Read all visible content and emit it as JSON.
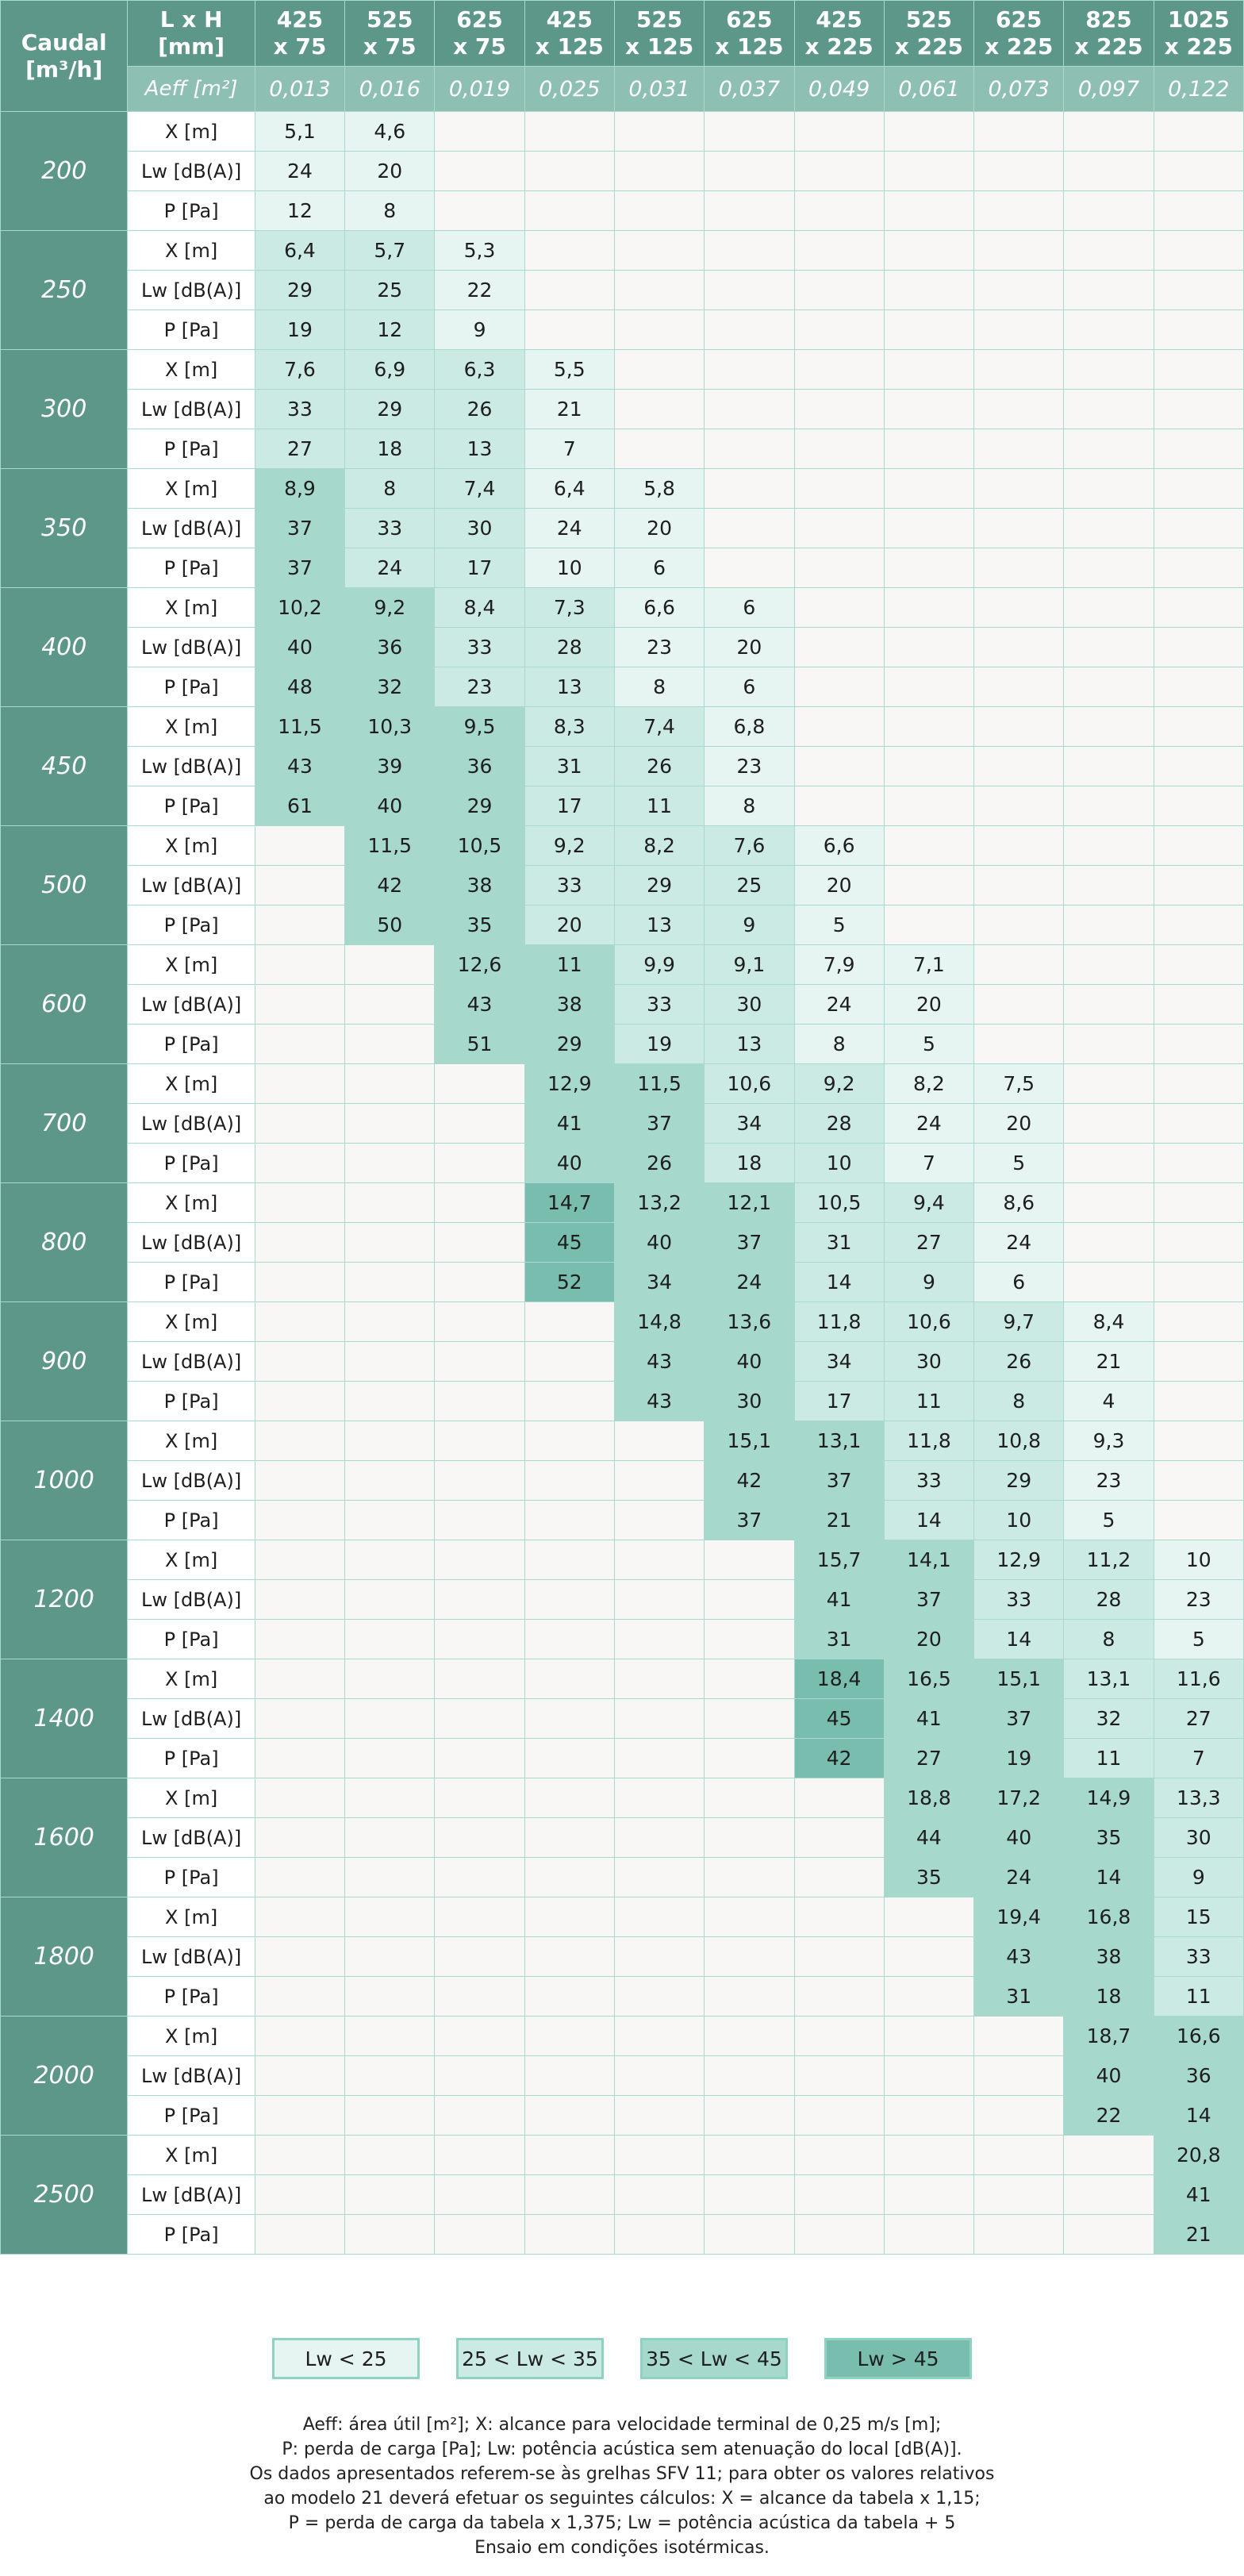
{
  "header": {
    "caudal_label": "Caudal",
    "caudal_unit": "[m³/h]",
    "lxh_label": "L x H",
    "lxh_unit": "[mm]",
    "aeff_label": "Aeff [m²]",
    "models": [
      {
        "w": "425",
        "h": "x 75",
        "aeff": "0,013"
      },
      {
        "w": "525",
        "h": "x 75",
        "aeff": "0,016"
      },
      {
        "w": "625",
        "h": "x 75",
        "aeff": "0,019"
      },
      {
        "w": "425",
        "h": "x 125",
        "aeff": "0,025"
      },
      {
        "w": "525",
        "h": "x 125",
        "aeff": "0,031"
      },
      {
        "w": "625",
        "h": "x 125",
        "aeff": "0,037"
      },
      {
        "w": "425",
        "h": "x 225",
        "aeff": "0,049"
      },
      {
        "w": "525",
        "h": "x 225",
        "aeff": "0,061"
      },
      {
        "w": "625",
        "h": "x 225",
        "aeff": "0,073"
      },
      {
        "w": "825",
        "h": "x 225",
        "aeff": "0,097"
      },
      {
        "w": "1025",
        "h": "x 225",
        "aeff": "0,122"
      }
    ]
  },
  "row_labels": [
    "X [m]",
    "Lw [dB(A)]",
    "P [Pa]"
  ],
  "colors": {
    "band1": "#e7f5f2",
    "band2": "#cbeae3",
    "band3": "#a6d8cc",
    "band4": "#78bdad",
    "header": "#5d978a",
    "aeff_row": "#8dbfb3"
  },
  "rows": [
    {
      "caudal": "200",
      "cells": [
        {
          "x": "5,1",
          "lw": "24",
          "p": "12"
        },
        {
          "x": "4,6",
          "lw": "20",
          "p": "8"
        },
        null,
        null,
        null,
        null,
        null,
        null,
        null,
        null,
        null
      ]
    },
    {
      "caudal": "250",
      "cells": [
        {
          "x": "6,4",
          "lw": "29",
          "p": "19"
        },
        {
          "x": "5,7",
          "lw": "25",
          "p": "12"
        },
        {
          "x": "5,3",
          "lw": "22",
          "p": "9"
        },
        null,
        null,
        null,
        null,
        null,
        null,
        null,
        null
      ]
    },
    {
      "caudal": "300",
      "cells": [
        {
          "x": "7,6",
          "lw": "33",
          "p": "27"
        },
        {
          "x": "6,9",
          "lw": "29",
          "p": "18"
        },
        {
          "x": "6,3",
          "lw": "26",
          "p": "13"
        },
        {
          "x": "5,5",
          "lw": "21",
          "p": "7"
        },
        null,
        null,
        null,
        null,
        null,
        null,
        null
      ]
    },
    {
      "caudal": "350",
      "cells": [
        {
          "x": "8,9",
          "lw": "37",
          "p": "37"
        },
        {
          "x": "8",
          "lw": "33",
          "p": "24"
        },
        {
          "x": "7,4",
          "lw": "30",
          "p": "17"
        },
        {
          "x": "6,4",
          "lw": "24",
          "p": "10"
        },
        {
          "x": "5,8",
          "lw": "20",
          "p": "6"
        },
        null,
        null,
        null,
        null,
        null,
        null
      ]
    },
    {
      "caudal": "400",
      "cells": [
        {
          "x": "10,2",
          "lw": "40",
          "p": "48"
        },
        {
          "x": "9,2",
          "lw": "36",
          "p": "32"
        },
        {
          "x": "8,4",
          "lw": "33",
          "p": "23"
        },
        {
          "x": "7,3",
          "lw": "28",
          "p": "13"
        },
        {
          "x": "6,6",
          "lw": "23",
          "p": "8"
        },
        {
          "x": "6",
          "lw": "20",
          "p": "6"
        },
        null,
        null,
        null,
        null,
        null
      ]
    },
    {
      "caudal": "450",
      "cells": [
        {
          "x": "11,5",
          "lw": "43",
          "p": "61"
        },
        {
          "x": "10,3",
          "lw": "39",
          "p": "40"
        },
        {
          "x": "9,5",
          "lw": "36",
          "p": "29"
        },
        {
          "x": "8,3",
          "lw": "31",
          "p": "17"
        },
        {
          "x": "7,4",
          "lw": "26",
          "p": "11"
        },
        {
          "x": "6,8",
          "lw": "23",
          "p": "8"
        },
        null,
        null,
        null,
        null,
        null
      ]
    },
    {
      "caudal": "500",
      "cells": [
        null,
        {
          "x": "11,5",
          "lw": "42",
          "p": "50"
        },
        {
          "x": "10,5",
          "lw": "38",
          "p": "35"
        },
        {
          "x": "9,2",
          "lw": "33",
          "p": "20"
        },
        {
          "x": "8,2",
          "lw": "29",
          "p": "13"
        },
        {
          "x": "7,6",
          "lw": "25",
          "p": "9"
        },
        {
          "x": "6,6",
          "lw": "20",
          "p": "5"
        },
        null,
        null,
        null,
        null
      ]
    },
    {
      "caudal": "600",
      "cells": [
        null,
        null,
        {
          "x": "12,6",
          "lw": "43",
          "p": "51"
        },
        {
          "x": "11",
          "lw": "38",
          "p": "29"
        },
        {
          "x": "9,9",
          "lw": "33",
          "p": "19"
        },
        {
          "x": "9,1",
          "lw": "30",
          "p": "13"
        },
        {
          "x": "7,9",
          "lw": "24",
          "p": "8"
        },
        {
          "x": "7,1",
          "lw": "20",
          "p": "5"
        },
        null,
        null,
        null
      ]
    },
    {
      "caudal": "700",
      "cells": [
        null,
        null,
        null,
        {
          "x": "12,9",
          "lw": "41",
          "p": "40"
        },
        {
          "x": "11,5",
          "lw": "37",
          "p": "26"
        },
        {
          "x": "10,6",
          "lw": "34",
          "p": "18"
        },
        {
          "x": "9,2",
          "lw": "28",
          "p": "10"
        },
        {
          "x": "8,2",
          "lw": "24",
          "p": "7"
        },
        {
          "x": "7,5",
          "lw": "20",
          "p": "5"
        },
        null,
        null
      ]
    },
    {
      "caudal": "800",
      "cells": [
        null,
        null,
        null,
        {
          "x": "14,7",
          "lw": "45",
          "p": "52"
        },
        {
          "x": "13,2",
          "lw": "40",
          "p": "34"
        },
        {
          "x": "12,1",
          "lw": "37",
          "p": "24"
        },
        {
          "x": "10,5",
          "lw": "31",
          "p": "14"
        },
        {
          "x": "9,4",
          "lw": "27",
          "p": "9"
        },
        {
          "x": "8,6",
          "lw": "24",
          "p": "6"
        },
        null,
        null
      ]
    },
    {
      "caudal": "900",
      "cells": [
        null,
        null,
        null,
        null,
        {
          "x": "14,8",
          "lw": "43",
          "p": "43"
        },
        {
          "x": "13,6",
          "lw": "40",
          "p": "30"
        },
        {
          "x": "11,8",
          "lw": "34",
          "p": "17"
        },
        {
          "x": "10,6",
          "lw": "30",
          "p": "11"
        },
        {
          "x": "9,7",
          "lw": "26",
          "p": "8"
        },
        {
          "x": "8,4",
          "lw": "21",
          "p": "4"
        },
        null
      ]
    },
    {
      "caudal": "1000",
      "cells": [
        null,
        null,
        null,
        null,
        null,
        {
          "x": "15,1",
          "lw": "42",
          "p": "37"
        },
        {
          "x": "13,1",
          "lw": "37",
          "p": "21"
        },
        {
          "x": "11,8",
          "lw": "33",
          "p": "14"
        },
        {
          "x": "10,8",
          "lw": "29",
          "p": "10"
        },
        {
          "x": "9,3",
          "lw": "23",
          "p": "5"
        },
        null
      ]
    },
    {
      "caudal": "1200",
      "cells": [
        null,
        null,
        null,
        null,
        null,
        null,
        {
          "x": "15,7",
          "lw": "41",
          "p": "31"
        },
        {
          "x": "14,1",
          "lw": "37",
          "p": "20"
        },
        {
          "x": "12,9",
          "lw": "33",
          "p": "14"
        },
        {
          "x": "11,2",
          "lw": "28",
          "p": "8"
        },
        {
          "x": "10",
          "lw": "23",
          "p": "5"
        }
      ]
    },
    {
      "caudal": "1400",
      "cells": [
        null,
        null,
        null,
        null,
        null,
        null,
        {
          "x": "18,4",
          "lw": "45",
          "p": "42"
        },
        {
          "x": "16,5",
          "lw": "41",
          "p": "27"
        },
        {
          "x": "15,1",
          "lw": "37",
          "p": "19"
        },
        {
          "x": "13,1",
          "lw": "32",
          "p": "11"
        },
        {
          "x": "11,6",
          "lw": "27",
          "p": "7"
        }
      ]
    },
    {
      "caudal": "1600",
      "cells": [
        null,
        null,
        null,
        null,
        null,
        null,
        null,
        {
          "x": "18,8",
          "lw": "44",
          "p": "35"
        },
        {
          "x": "17,2",
          "lw": "40",
          "p": "24"
        },
        {
          "x": "14,9",
          "lw": "35",
          "p": "14"
        },
        {
          "x": "13,3",
          "lw": "30",
          "p": "9"
        }
      ]
    },
    {
      "caudal": "1800",
      "cells": [
        null,
        null,
        null,
        null,
        null,
        null,
        null,
        null,
        {
          "x": "19,4",
          "lw": "43",
          "p": "31"
        },
        {
          "x": "16,8",
          "lw": "38",
          "p": "18"
        },
        {
          "x": "15",
          "lw": "33",
          "p": "11"
        }
      ]
    },
    {
      "caudal": "2000",
      "cells": [
        null,
        null,
        null,
        null,
        null,
        null,
        null,
        null,
        null,
        {
          "x": "18,7",
          "lw": "40",
          "p": "22"
        },
        {
          "x": "16,6",
          "lw": "36",
          "p": "14"
        }
      ]
    },
    {
      "caudal": "2500",
      "cells": [
        null,
        null,
        null,
        null,
        null,
        null,
        null,
        null,
        null,
        null,
        {
          "x": "20,8",
          "lw": "41",
          "p": "21"
        }
      ]
    }
  ],
  "legend": [
    "Lw < 25",
    "25 < Lw < 35",
    "35 < Lw < 45",
    "Lw > 45"
  ],
  "notes": [
    "Aeff: área útil [m²]; X: alcance para velocidade terminal de 0,25 m/s [m];",
    "P: perda de carga [Pa]; Lw: potência acústica sem atenuação do local [dB(A)].",
    "Os dados apresentados referem-se às grelhas SFV 11; para obter os valores relativos",
    "ao modelo 21 deverá efetuar os seguintes cálculos: X = alcance da tabela x 1,15;",
    "P = perda de carga da tabela x 1,375; Lw = potência acústica da tabela + 5",
    "Ensaio em condições isotérmicas."
  ]
}
